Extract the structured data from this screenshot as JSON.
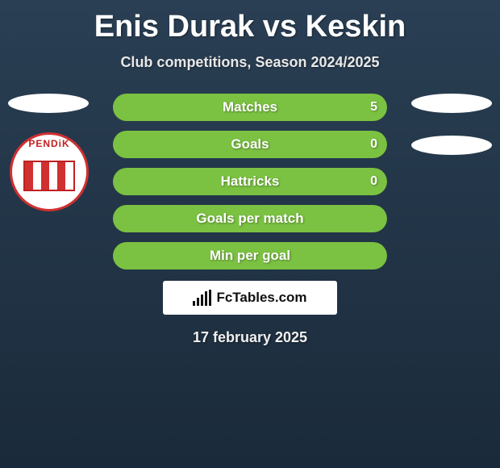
{
  "title": "Enis Durak vs Keskin",
  "subtitle": "Club competitions, Season 2024/2025",
  "date": "17 february 2025",
  "brand": "FcTables.com",
  "club_badge_text": "PENDiK",
  "colors": {
    "bar_green": "#7bc142",
    "bar_dark": "#2e4a2a",
    "bar_bg": "#6fae3c",
    "text": "#ffffff",
    "background_top": "#2a3f54",
    "background_bottom": "#1a2a3a"
  },
  "rows": [
    {
      "label": "Matches",
      "left_value": "",
      "right_value": "5",
      "left_fill_pct": 0,
      "right_fill_pct": 100,
      "fill_color": "#7bc142",
      "has_values": true
    },
    {
      "label": "Goals",
      "left_value": "",
      "right_value": "0",
      "left_fill_pct": 0,
      "right_fill_pct": 100,
      "fill_color": "#7bc142",
      "has_values": true
    },
    {
      "label": "Hattricks",
      "left_value": "",
      "right_value": "0",
      "left_fill_pct": 0,
      "right_fill_pct": 100,
      "fill_color": "#7bc142",
      "has_values": true
    },
    {
      "label": "Goals per match",
      "left_value": "",
      "right_value": "",
      "left_fill_pct": 0,
      "right_fill_pct": 100,
      "fill_color": "#7bc142",
      "has_values": false
    },
    {
      "label": "Min per goal",
      "left_value": "",
      "right_value": "",
      "left_fill_pct": 0,
      "right_fill_pct": 100,
      "fill_color": "#7bc142",
      "has_values": false
    }
  ]
}
